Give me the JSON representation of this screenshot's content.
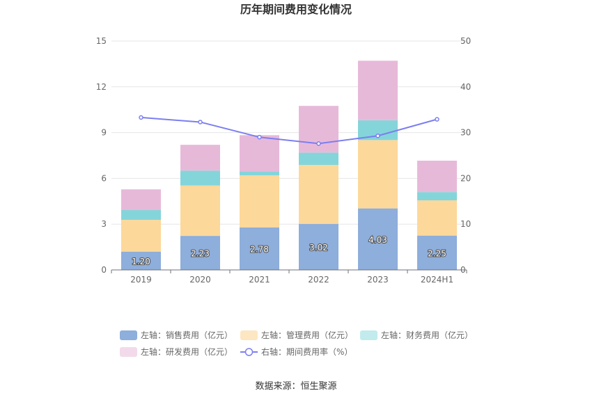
{
  "chart_data": {
    "type": "bar",
    "title": "历年期间费用变化情况",
    "categories": [
      "2019",
      "2020",
      "2021",
      "2022",
      "2023",
      "2024H1"
    ],
    "y_left": {
      "min": 0,
      "max": 15,
      "ticks": [
        0,
        3,
        6,
        9,
        12,
        15
      ]
    },
    "y_right": {
      "min": 0,
      "max": 50,
      "ticks": [
        0,
        10,
        20,
        30,
        40,
        50
      ]
    },
    "series": [
      {
        "name": "左轴：销售费用（亿元）",
        "axis": "left",
        "kind": "stacked-bar",
        "color": "#8eaedb",
        "values": [
          1.2,
          2.23,
          2.78,
          3.02,
          4.03,
          2.25
        ],
        "labels": [
          "1.20",
          "2.23",
          "2.78",
          "3.02",
          "4.03",
          "2.25"
        ]
      },
      {
        "name": "左轴：管理费用（亿元）",
        "axis": "left",
        "kind": "stacked-bar",
        "color": "#fdd89b",
        "values": [
          2.08,
          3.3,
          3.42,
          3.86,
          4.48,
          2.31
        ]
      },
      {
        "name": "左轴：财务费用（亿元）",
        "axis": "left",
        "kind": "stacked-bar",
        "color": "#84d5da",
        "values": [
          0.64,
          0.98,
          0.26,
          0.81,
          1.3,
          0.54
        ]
      },
      {
        "name": "左轴：研发费用（亿元）",
        "axis": "left",
        "kind": "stacked-bar",
        "color": "#e7b9d9",
        "values": [
          1.36,
          1.69,
          2.37,
          3.06,
          3.9,
          2.06
        ]
      },
      {
        "name": "右轴：期间费用率（%）",
        "axis": "right",
        "kind": "line",
        "color": "#7b7ef0",
        "values": [
          33.3,
          32.3,
          29.0,
          27.6,
          29.3,
          32.9
        ]
      }
    ],
    "legend_position": "bottom",
    "grid": true
  },
  "source_text": "数据来源：恒生聚源",
  "legend_swatch_colors": [
    "#8eaedb",
    "#fde6c2",
    "#c2ebed",
    "#f2daeb"
  ]
}
